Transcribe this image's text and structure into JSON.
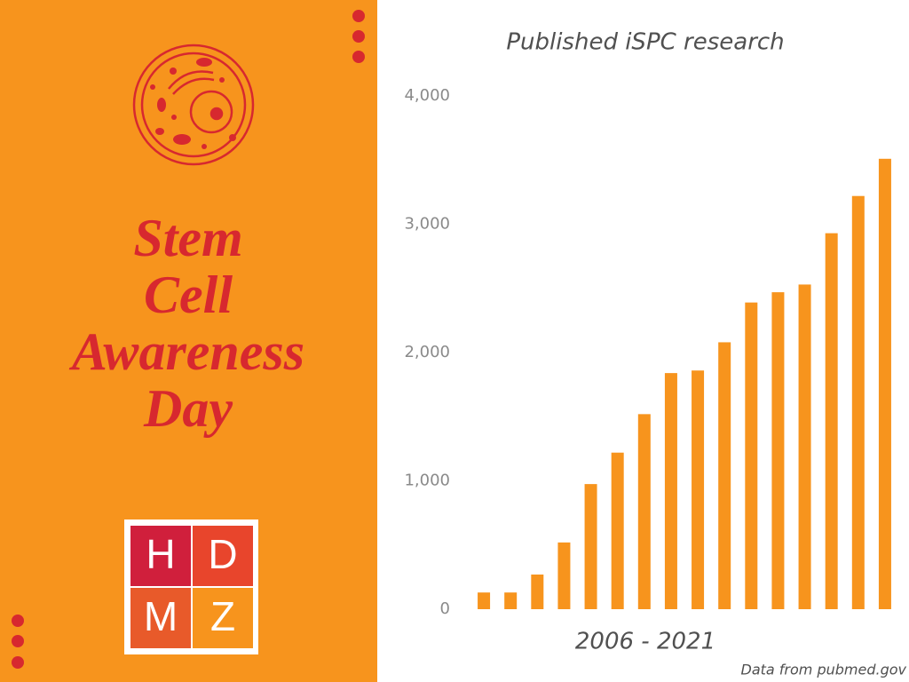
{
  "poster": {
    "headline": [
      "Stem",
      "Cell",
      "Awareness",
      "Day"
    ],
    "logo": [
      "H",
      "D",
      "M",
      "Z"
    ],
    "source": "Data from pubmed.gov"
  },
  "chart_data": {
    "type": "bar",
    "title": "Published iSPC research",
    "x_label": "2006 - 2021",
    "categories": [
      null,
      null,
      null,
      null,
      null,
      null,
      null,
      null,
      null,
      null,
      null,
      null,
      null,
      null,
      null,
      null
    ],
    "values": [
      130,
      130,
      270,
      520,
      975,
      1220,
      1520,
      1840,
      1860,
      2080,
      2390,
      2470,
      2530,
      2930,
      3220,
      3510
    ],
    "color": "#f7941d",
    "ylim": [
      0,
      4000
    ],
    "yticks": [
      0,
      {
        "value": 1000,
        "label": "1,000"
      },
      {
        "value": 2000,
        "label": "2,000"
      },
      {
        "value": 3000,
        "label": "3,000"
      },
      {
        "value": 4000,
        "label": "4,000"
      }
    ],
    "grid": false
  }
}
